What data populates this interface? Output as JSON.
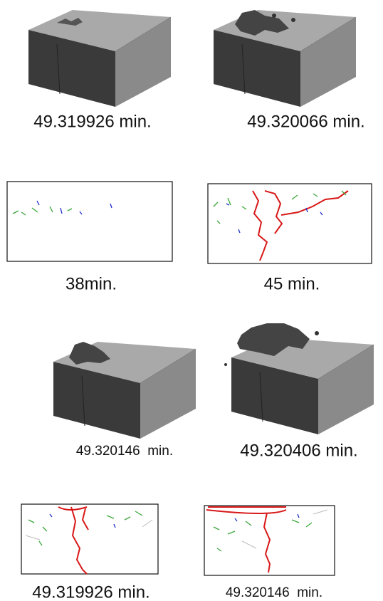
{
  "panels": [
    {
      "caption": "49.319926 min."
    },
    {
      "caption": "49.320066 min."
    },
    {
      "caption": "38min."
    },
    {
      "caption": "45 min."
    },
    {
      "caption": "49.320146  min."
    },
    {
      "caption": "49.320406 min."
    },
    {
      "caption": "49.319926 min."
    },
    {
      "caption": "49.320146  min."
    }
  ]
}
